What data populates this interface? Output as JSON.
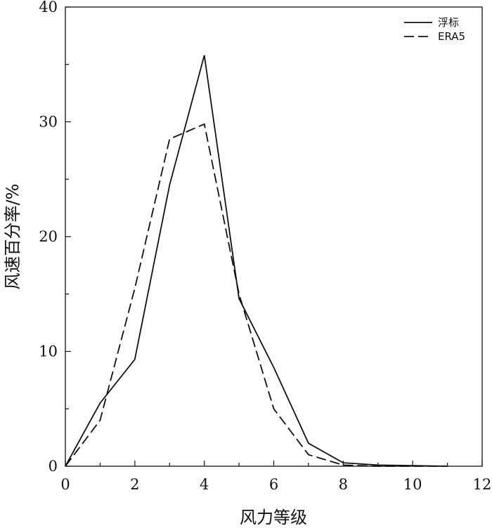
{
  "chart_data": {
    "type": "line",
    "title": "",
    "xlabel": "风力等级",
    "ylabel": "风速百分率/%",
    "xlim": [
      0,
      12
    ],
    "ylim": [
      0,
      40
    ],
    "xticks": [
      0,
      2,
      4,
      6,
      8,
      10,
      12
    ],
    "yticks": [
      0,
      10,
      20,
      30,
      40
    ],
    "x": [
      0,
      1,
      2,
      3,
      4,
      5,
      6,
      7,
      8,
      9,
      10,
      11
    ],
    "grid": false,
    "legend_position": "top-right",
    "series": [
      {
        "name": "浮标",
        "style": "solid",
        "color": "#111111",
        "values": [
          0,
          5.5,
          9.3,
          24.5,
          35.8,
          14.6,
          8.6,
          2.0,
          0.3,
          0.1,
          0.05,
          0
        ]
      },
      {
        "name": "ERA5",
        "style": "dashed",
        "color": "#111111",
        "values": [
          0,
          4.0,
          15.5,
          28.5,
          29.8,
          15.0,
          5.0,
          1.0,
          0.1,
          0.0,
          0.0,
          0
        ]
      }
    ]
  }
}
